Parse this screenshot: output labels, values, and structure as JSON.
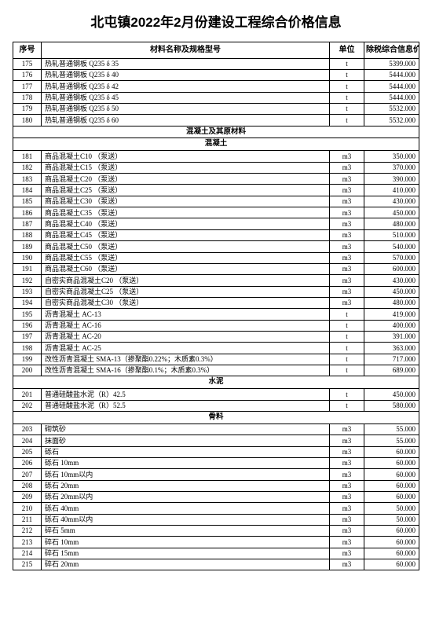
{
  "title": "北屯镇2022年2月份建设工程综合价格信息",
  "columns": {
    "seq": "序号",
    "name": "材料名称及规格型号",
    "unit": "单位",
    "price": "除税综合信息价"
  },
  "colors": {
    "text": "#000000",
    "border": "#000000",
    "background": "#ffffff"
  },
  "rows": [
    {
      "type": "data",
      "seq": "175",
      "name": "热轧普通钢板 Q235 δ 35",
      "unit": "t",
      "price": "5399.000"
    },
    {
      "type": "data",
      "seq": "176",
      "name": "热轧普通钢板 Q235 δ 40",
      "unit": "t",
      "price": "5444.000"
    },
    {
      "type": "data",
      "seq": "177",
      "name": "热轧普通钢板 Q235 δ 42",
      "unit": "t",
      "price": "5444.000"
    },
    {
      "type": "data",
      "seq": "178",
      "name": "热轧普通钢板 Q235 δ 45",
      "unit": "t",
      "price": "5444.000"
    },
    {
      "type": "data",
      "seq": "179",
      "name": "热轧普通钢板 Q235 δ 50",
      "unit": "t",
      "price": "5532.000"
    },
    {
      "type": "data",
      "seq": "180",
      "name": "热轧普通钢板 Q235 δ 60",
      "unit": "t",
      "price": "5532.000"
    },
    {
      "type": "section",
      "label": "混凝土及其原材料"
    },
    {
      "type": "section",
      "label": "混凝土"
    },
    {
      "type": "data",
      "seq": "181",
      "name": "商品混凝土C10 （泵送）",
      "unit": "m3",
      "price": "350.000"
    },
    {
      "type": "data",
      "seq": "182",
      "name": "商品混凝土C15 （泵送）",
      "unit": "m3",
      "price": "370.000"
    },
    {
      "type": "data",
      "seq": "183",
      "name": "商品混凝土C20 （泵送）",
      "unit": "m3",
      "price": "390.000"
    },
    {
      "type": "data",
      "seq": "184",
      "name": "商品混凝土C25 （泵送）",
      "unit": "m3",
      "price": "410.000"
    },
    {
      "type": "data",
      "seq": "185",
      "name": "商品混凝土C30 （泵送）",
      "unit": "m3",
      "price": "430.000"
    },
    {
      "type": "data",
      "seq": "186",
      "name": "商品混凝土C35 （泵送）",
      "unit": "m3",
      "price": "450.000"
    },
    {
      "type": "data",
      "seq": "187",
      "name": "商品混凝土C40 （泵送）",
      "unit": "m3",
      "price": "480.000"
    },
    {
      "type": "data",
      "seq": "188",
      "name": "商品混凝土C45 （泵送）",
      "unit": "m3",
      "price": "510.000"
    },
    {
      "type": "data",
      "seq": "189",
      "name": "商品混凝土C50 （泵送）",
      "unit": "m3",
      "price": "540.000"
    },
    {
      "type": "data",
      "seq": "190",
      "name": "商品混凝土C55 （泵送）",
      "unit": "m3",
      "price": "570.000"
    },
    {
      "type": "data",
      "seq": "191",
      "name": "商品混凝土C60 （泵送）",
      "unit": "m3",
      "price": "600.000"
    },
    {
      "type": "data",
      "seq": "192",
      "name": "自密实商品混凝土C20 （泵送）",
      "unit": "m3",
      "price": "430.000"
    },
    {
      "type": "data",
      "seq": "193",
      "name": "自密实商品混凝土C25 （泵送）",
      "unit": "m3",
      "price": "450.000"
    },
    {
      "type": "data",
      "seq": "194",
      "name": "自密实商品混凝土C30 （泵送）",
      "unit": "m3",
      "price": "480.000"
    },
    {
      "type": "data",
      "seq": "195",
      "name": "沥青混凝土 AC-13",
      "unit": "t",
      "price": "419.000"
    },
    {
      "type": "data",
      "seq": "196",
      "name": "沥青混凝土 AC-16",
      "unit": "t",
      "price": "400.000"
    },
    {
      "type": "data",
      "seq": "197",
      "name": "沥青混凝土 AC-20",
      "unit": "t",
      "price": "391.000"
    },
    {
      "type": "data",
      "seq": "198",
      "name": "沥青混凝土 AC-25",
      "unit": "t",
      "price": "363.000"
    },
    {
      "type": "data",
      "seq": "199",
      "name": "改性沥青混凝土 SMA-13（掺聚酯0.22%；木质素0.3%）",
      "unit": "t",
      "price": "717.000"
    },
    {
      "type": "data",
      "seq": "200",
      "name": "改性沥青混凝土 SMA-16（掺聚酯0.1%；木质素0.3%）",
      "unit": "t",
      "price": "689.000"
    },
    {
      "type": "section",
      "label": "水泥"
    },
    {
      "type": "data",
      "seq": "201",
      "name": "普通硅酸盐水泥（R）42.5",
      "unit": "t",
      "price": "450.000"
    },
    {
      "type": "data",
      "seq": "202",
      "name": "普通硅酸盐水泥（R）52.5",
      "unit": "t",
      "price": "580.000"
    },
    {
      "type": "section",
      "label": "骨料"
    },
    {
      "type": "data",
      "seq": "203",
      "name": "砌筑砂",
      "unit": "m3",
      "price": "55.000"
    },
    {
      "type": "data",
      "seq": "204",
      "name": "抹面砂",
      "unit": "m3",
      "price": "55.000"
    },
    {
      "type": "data",
      "seq": "205",
      "name": "砾石",
      "unit": "m3",
      "price": "60.000"
    },
    {
      "type": "data",
      "seq": "206",
      "name": "砾石 10mm",
      "unit": "m3",
      "price": "60.000"
    },
    {
      "type": "data",
      "seq": "207",
      "name": "砾石 10mm以内",
      "unit": "m3",
      "price": "60.000"
    },
    {
      "type": "data",
      "seq": "208",
      "name": "砾石 20mm",
      "unit": "m3",
      "price": "60.000"
    },
    {
      "type": "data",
      "seq": "209",
      "name": "砾石 20mm以内",
      "unit": "m3",
      "price": "60.000"
    },
    {
      "type": "data",
      "seq": "210",
      "name": "砾石 40mm",
      "unit": "m3",
      "price": "50.000"
    },
    {
      "type": "data",
      "seq": "211",
      "name": "砾石 40mm以内",
      "unit": "m3",
      "price": "50.000"
    },
    {
      "type": "data",
      "seq": "212",
      "name": "碎石 5mm",
      "unit": "m3",
      "price": "60.000"
    },
    {
      "type": "data",
      "seq": "213",
      "name": "碎石 10mm",
      "unit": "m3",
      "price": "60.000"
    },
    {
      "type": "data",
      "seq": "214",
      "name": "碎石 15mm",
      "unit": "m3",
      "price": "60.000"
    },
    {
      "type": "data",
      "seq": "215",
      "name": "碎石 20mm",
      "unit": "m3",
      "price": "60.000"
    }
  ]
}
